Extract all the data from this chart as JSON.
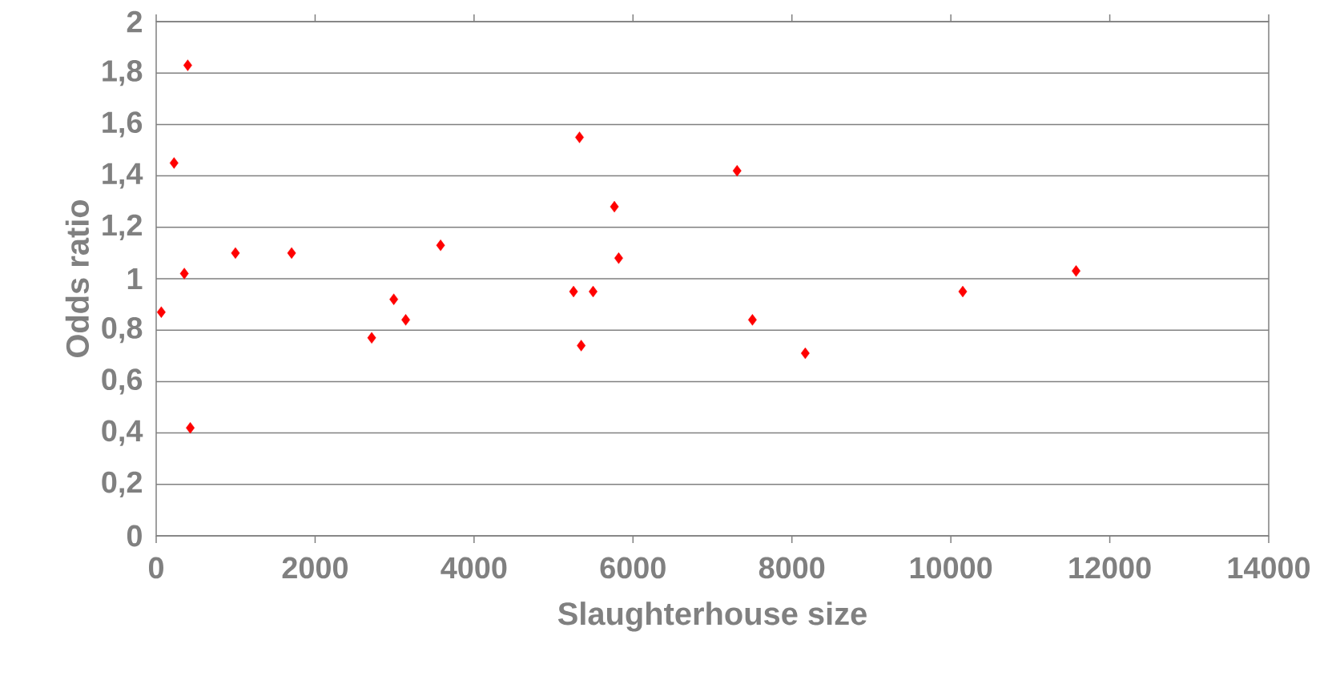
{
  "chart_data": {
    "type": "scatter",
    "xlabel": "Slaughterhouse size",
    "ylabel": "Odds ratio",
    "x": [
      64,
      225,
      397,
      354,
      429,
      997,
      1704,
      2712,
      2990,
      3140,
      3579,
      5252,
      5327,
      5348,
      5498,
      5766,
      5820,
      7310,
      7503,
      8168,
      10150,
      11576
    ],
    "values": [
      0.87,
      1.45,
      1.83,
      1.02,
      0.42,
      1.1,
      1.1,
      0.77,
      0.92,
      0.84,
      1.13,
      0.95,
      1.55,
      0.74,
      0.95,
      1.28,
      1.08,
      1.42,
      0.84,
      0.71,
      0.95,
      1.03
    ],
    "color": "#ff0000",
    "marker": "diamond",
    "grid": "y",
    "xlim": [
      0,
      14000
    ],
    "xticks": [
      0,
      2000,
      4000,
      6000,
      8000,
      10000,
      12000,
      14000
    ],
    "ylim": [
      0,
      2
    ],
    "yticks": [
      0,
      {
        "value": 0.2,
        "label": "0,2"
      },
      {
        "value": 0.4,
        "label": "0,4"
      },
      {
        "value": 0.6,
        "label": "0,6"
      },
      {
        "value": 0.8,
        "label": "0,8"
      },
      1,
      {
        "value": 1.2,
        "label": "1,2"
      },
      {
        "value": 1.4,
        "label": "1,4"
      },
      {
        "value": 1.6,
        "label": "1,6"
      },
      {
        "value": 1.8,
        "label": "1,8"
      },
      2
    ]
  }
}
